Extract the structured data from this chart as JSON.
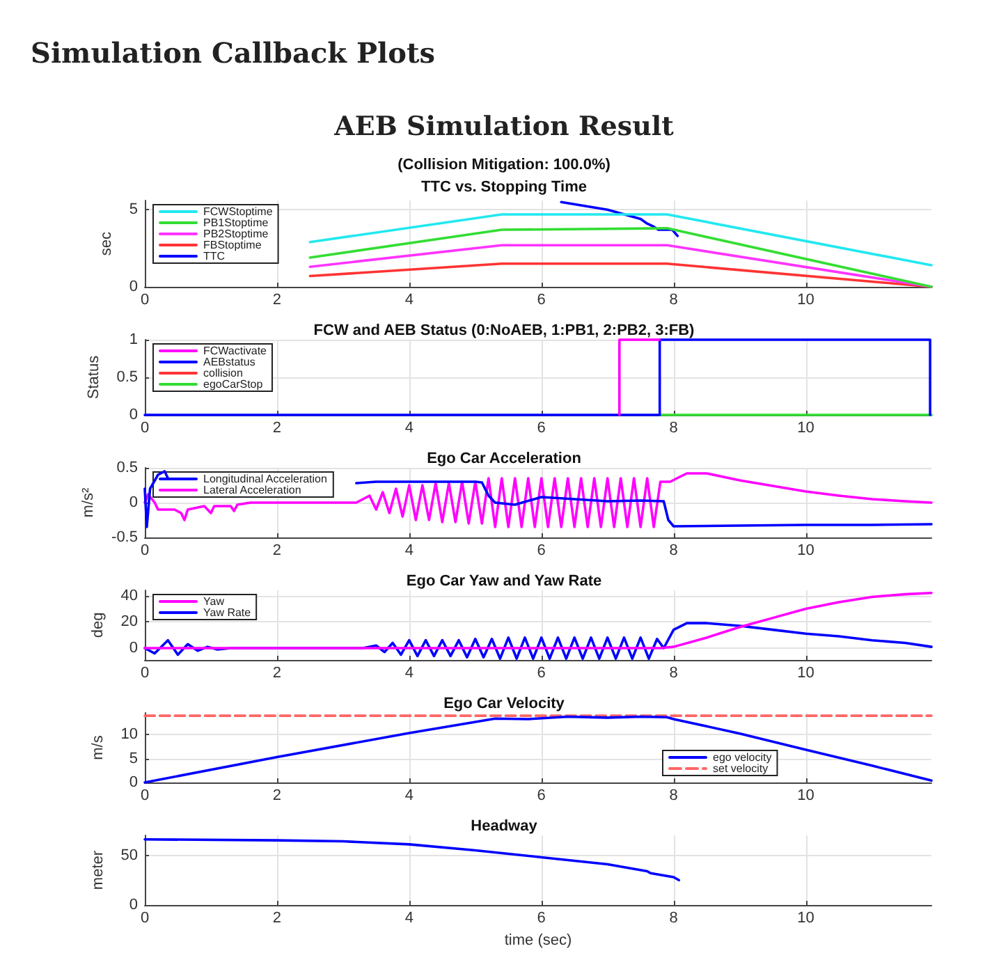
{
  "chart_data": [
    {
      "type": "other",
      "title": "Simulation Callback Plots",
      "subtitle": "AEB Simulation Result"
    },
    {
      "type": "line",
      "subtitle": "(Collision Mitigation: 100.0%)",
      "title": "TTC vs. Stopping Time",
      "ylabel": "sec",
      "xlim": [
        0,
        11.9
      ],
      "xticks": [
        0,
        2,
        4,
        6,
        8,
        10
      ],
      "ylim": [
        0,
        5.6
      ],
      "yticks": [
        0,
        5
      ],
      "grid": true,
      "legend": "top left",
      "series": [
        {
          "name": "FCWStoptime",
          "color": "#22e8f0",
          "x": [
            2.5,
            5.4,
            7.9,
            11.9
          ],
          "values": [
            2.9,
            4.7,
            4.7,
            1.4
          ]
        },
        {
          "name": "PB1Stoptime",
          "color": "#33dd33",
          "x": [
            2.5,
            5.4,
            7.9,
            11.9
          ],
          "values": [
            1.9,
            3.7,
            3.8,
            0
          ]
        },
        {
          "name": "PB2Stoptime",
          "color": "#ff33ff",
          "x": [
            2.5,
            5.4,
            7.9,
            11.9
          ],
          "values": [
            1.3,
            2.7,
            2.7,
            0
          ]
        },
        {
          "name": "FBStoptime",
          "color": "#ff3333",
          "x": [
            2.5,
            5.4,
            7.9,
            11.9
          ],
          "values": [
            0.7,
            1.5,
            1.5,
            0
          ]
        },
        {
          "name": "TTC",
          "color": "#0000ff",
          "x": [
            6.3,
            7.0,
            7.5,
            7.6,
            7.7,
            7.77,
            7.98,
            8.06
          ],
          "values": [
            5.5,
            5.0,
            4.4,
            4.1,
            3.9,
            3.7,
            3.7,
            3.3
          ]
        }
      ]
    },
    {
      "type": "line",
      "title": "FCW and AEB Status (0:NoAEB, 1:PB1, 2:PB2, 3:FB)",
      "ylabel": "Status",
      "xlim": [
        0,
        11.9
      ],
      "xticks": [
        0,
        2,
        4,
        6,
        8,
        10
      ],
      "ylim": [
        0,
        1
      ],
      "yticks": [
        0,
        0.5,
        1
      ],
      "grid": true,
      "legend": "top left",
      "series": [
        {
          "name": "FCWactivate",
          "color": "#ff00ff",
          "x": [
            7.18,
            7.18,
            7.79
          ],
          "values": [
            0,
            1,
            1
          ]
        },
        {
          "name": "AEBstatus",
          "color": "#0000ff",
          "x": [
            0,
            7.79,
            7.79,
            11.88,
            11.88
          ],
          "values": [
            0,
            0,
            1,
            1,
            0
          ]
        },
        {
          "name": "collision",
          "color": "#ff3333"
        },
        {
          "name": "egoCarStop",
          "color": "#33dd33",
          "x": [
            7.79,
            11.9
          ],
          "values": [
            0,
            0
          ]
        }
      ]
    },
    {
      "type": "line",
      "title": "Ego Car Acceleration",
      "ylabel": "m/s²",
      "xlim": [
        0,
        11.9
      ],
      "xticks": [
        0,
        2,
        4,
        6,
        8,
        10
      ],
      "ylim": [
        -0.5,
        0.5
      ],
      "yticks": [
        -0.5,
        0,
        0.5
      ],
      "grid": true,
      "legend": "top left",
      "series": [
        {
          "name": "Longitudinal Acceleration",
          "color": "#0000ff",
          "x": [
            0,
            0.03,
            0.08,
            0.2,
            0.3,
            0.35,
            0.4,
            3.2,
            3.5,
            4,
            4.5,
            5,
            5.1,
            5.2,
            5.3,
            5.6,
            6,
            6.5,
            7,
            7.5,
            7.85,
            7.92,
            8,
            9,
            10,
            11,
            11.9
          ],
          "values": [
            0.2,
            -0.35,
            0.2,
            0.4,
            0.45,
            0.35,
            null,
            0.28,
            0.3,
            0.3,
            0.3,
            0.3,
            0.29,
            0.1,
            0.0,
            -0.03,
            0.08,
            0.05,
            0.02,
            0.03,
            0.02,
            -0.25,
            -0.34,
            -0.33,
            -0.32,
            -0.32,
            -0.31
          ]
        },
        {
          "name": "Lateral Acceleration",
          "color": "#ff00ff",
          "x": [
            0,
            0.05,
            0.15,
            0.2,
            0.45,
            0.55,
            0.6,
            0.65,
            0.9,
            1.0,
            1.05,
            1.3,
            1.35,
            1.4,
            1.6,
            3.2,
            3.3,
            3.4,
            3.5,
            3.6,
            3.7,
            3.8,
            3.9,
            4.0,
            4.1,
            4.2,
            4.3,
            4.4,
            4.5,
            4.6,
            4.7,
            4.8,
            4.9,
            5.0,
            5.1,
            5.2,
            5.3,
            5.4,
            5.5,
            5.6,
            5.7,
            5.8,
            5.9,
            6.0,
            6.1,
            6.2,
            6.3,
            6.4,
            6.5,
            6.6,
            6.7,
            6.8,
            6.9,
            7.0,
            7.1,
            7.2,
            7.3,
            7.4,
            7.5,
            7.6,
            7.7,
            7.8,
            7.95,
            8.05,
            8.2,
            8.5,
            9,
            9.5,
            10,
            10.5,
            11,
            11.5,
            11.9
          ],
          "values": [
            0,
            0.12,
            0,
            -0.1,
            -0.1,
            -0.15,
            -0.25,
            -0.1,
            -0.05,
            -0.15,
            -0.05,
            -0.05,
            -0.12,
            -0.03,
            0,
            0,
            0.05,
            0.1,
            -0.1,
            0.15,
            -0.15,
            0.2,
            -0.2,
            0.25,
            -0.25,
            0.25,
            -0.25,
            0.28,
            -0.28,
            0.28,
            -0.28,
            0.3,
            -0.3,
            0.3,
            -0.3,
            0.35,
            -0.35,
            0.35,
            -0.35,
            0.35,
            -0.35,
            0.35,
            -0.35,
            0.35,
            -0.35,
            0.35,
            -0.35,
            0.35,
            -0.35,
            0.35,
            -0.35,
            0.35,
            -0.35,
            0.35,
            -0.35,
            0.35,
            -0.35,
            0.35,
            -0.35,
            0.35,
            -0.35,
            0.3,
            0.3,
            0.35,
            0.42,
            0.42,
            0.32,
            0.24,
            0.16,
            0.1,
            0.05,
            0.02,
            0
          ]
        }
      ]
    },
    {
      "type": "line",
      "title": "Ego Car Yaw and Yaw Rate",
      "ylabel": "deg",
      "xlim": [
        0,
        11.9
      ],
      "xticks": [
        0,
        2,
        4,
        6,
        8,
        10
      ],
      "ylim": [
        -9,
        44
      ],
      "yticks": [
        0,
        20,
        40
      ],
      "grid": true,
      "legend": "top left",
      "series": [
        {
          "name": "Yaw",
          "color": "#ff00ff",
          "x": [
            0,
            7.8,
            8,
            8.5,
            9,
            9.5,
            10,
            10.5,
            11,
            11.5,
            11.9
          ],
          "values": [
            0,
            0,
            1,
            8,
            16,
            23,
            30,
            35,
            39,
            41,
            42
          ]
        },
        {
          "name": "Yaw Rate",
          "color": "#0000ff",
          "x": [
            0,
            0.15,
            0.35,
            0.5,
            0.65,
            0.8,
            0.95,
            1.1,
            1.3,
            3.3,
            3.5,
            3.625,
            3.75,
            3.875,
            4.0,
            4.125,
            4.25,
            4.375,
            4.5,
            4.625,
            4.75,
            4.875,
            5.0,
            5.125,
            5.25,
            5.375,
            5.5,
            5.625,
            5.75,
            5.875,
            6.0,
            6.125,
            6.25,
            6.375,
            6.5,
            6.625,
            6.75,
            6.875,
            7.0,
            7.125,
            7.25,
            7.375,
            7.5,
            7.625,
            7.75,
            7.85,
            8.0,
            8.2,
            8.5,
            9,
            9.5,
            10,
            10.5,
            11,
            11.5,
            11.9
          ],
          "values": [
            0,
            -4,
            6,
            -5,
            3,
            -2,
            1,
            -1,
            0,
            0,
            2,
            -3,
            4,
            -5,
            6,
            -6,
            6,
            -6,
            6,
            -6,
            6,
            -7,
            7,
            -7,
            7,
            -8,
            8,
            -8,
            8,
            -8,
            8,
            -8,
            8,
            -8,
            8,
            -8,
            8,
            -8,
            8,
            -8,
            8,
            -8,
            8,
            -8,
            7,
            0,
            14,
            19,
            19,
            17,
            14,
            11,
            9,
            6,
            4,
            1
          ]
        }
      ]
    },
    {
      "type": "line",
      "title": "Ego Car Velocity",
      "ylabel": "m/s",
      "xlim": [
        0,
        11.9
      ],
      "xticks": [
        0,
        2,
        4,
        6,
        8,
        10
      ],
      "ylim": [
        0,
        14.5
      ],
      "yticks": [
        0,
        5,
        10
      ],
      "grid": true,
      "legend": "bottom right",
      "series": [
        {
          "name": "ego velocity",
          "color": "#0000ff",
          "x": [
            0,
            2,
            4,
            5.3,
            5.8,
            6.4,
            7,
            7.5,
            7.9,
            8,
            9,
            10,
            11,
            11.9
          ],
          "values": [
            0,
            5.3,
            10.3,
            13.3,
            13.2,
            13.7,
            13.5,
            13.7,
            13.6,
            13.2,
            10.2,
            6.8,
            3.5,
            0.4
          ]
        },
        {
          "name": "set velocity",
          "color": "#ff6666",
          "line_style": "dashed",
          "x": [
            0,
            11.9
          ],
          "values": [
            13.9,
            13.9
          ]
        }
      ]
    },
    {
      "type": "line",
      "title": "Headway",
      "ylabel": "meter",
      "xlabel": "time (sec)",
      "xlim": [
        0,
        11.9
      ],
      "xticks": [
        0,
        2,
        4,
        6,
        8,
        10
      ],
      "ylim": [
        0,
        70
      ],
      "yticks": [
        0,
        50
      ],
      "grid": true,
      "series": [
        {
          "color": "#0000ff",
          "x": [
            0,
            2,
            3,
            4,
            5,
            6,
            7,
            7.6,
            7.65,
            8,
            8.08
          ],
          "values": [
            66,
            65,
            64,
            61,
            55,
            48,
            41,
            34,
            32,
            28,
            25
          ]
        }
      ]
    }
  ]
}
